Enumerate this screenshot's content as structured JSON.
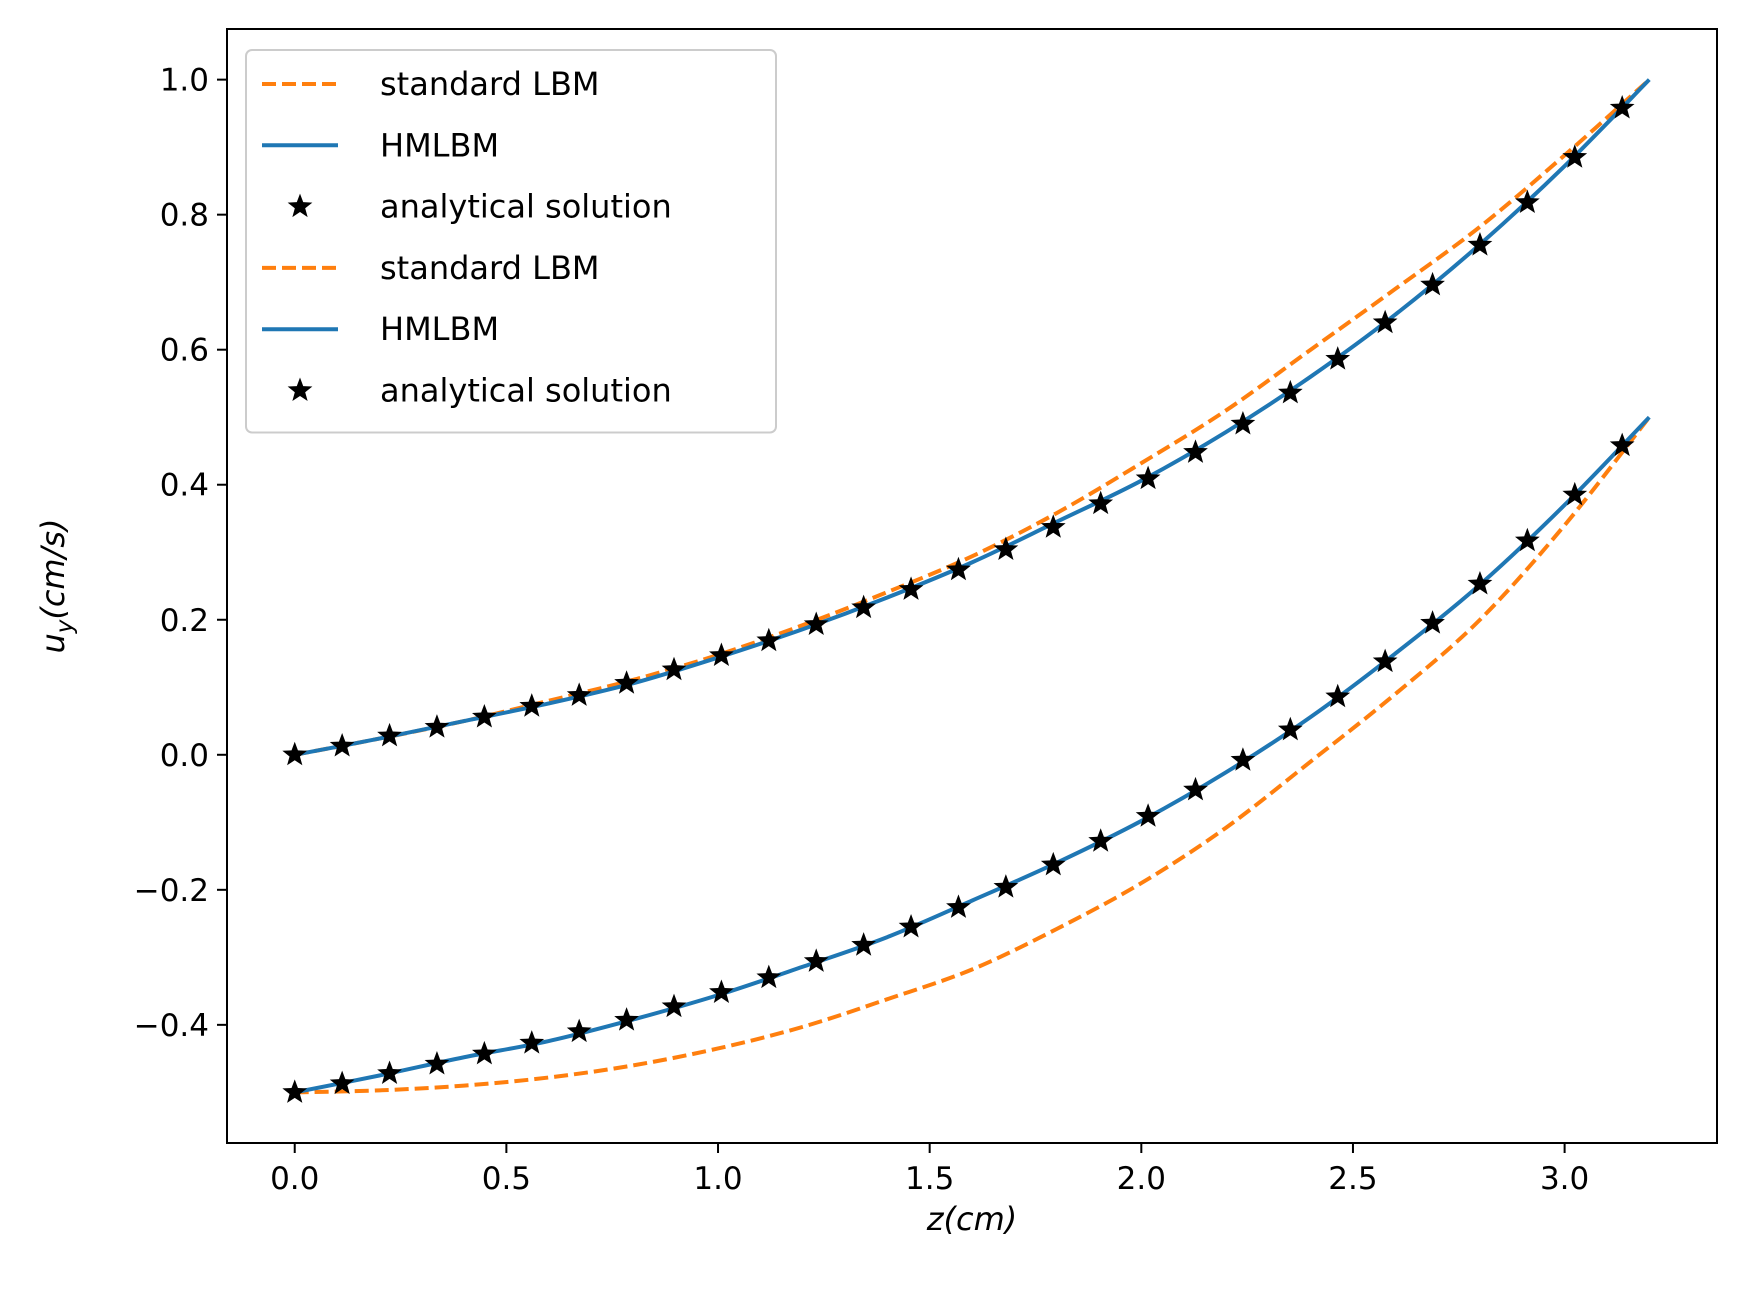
{
  "chart_data": {
    "type": "line",
    "xlabel": "z(cm)",
    "ylabel": "u_y(cm/s)",
    "xlim": [
      -0.16,
      3.36
    ],
    "ylim": [
      -0.575,
      1.075
    ],
    "x_ticks": [
      "0.0",
      "0.5",
      "1.0",
      "1.5",
      "2.0",
      "2.5",
      "3.0"
    ],
    "y_ticks": [
      "−0.4",
      "−0.2",
      "0.0",
      "0.2",
      "0.4",
      "0.6",
      "0.8",
      "1.0"
    ],
    "legend_position": "upper-left",
    "legend": [
      {
        "label": "standard LBM",
        "style": "dashed",
        "color": "#ff7f0e"
      },
      {
        "label": "HMLBM",
        "style": "solid",
        "color": "#1f77b4"
      },
      {
        "label": "analytical solution",
        "style": "star",
        "color": "#000000"
      },
      {
        "label": "standard LBM",
        "style": "dashed",
        "color": "#ff7f0e"
      },
      {
        "label": "HMLBM",
        "style": "solid",
        "color": "#1f77b4"
      },
      {
        "label": "analytical solution",
        "style": "star",
        "color": "#000000"
      }
    ],
    "series": [
      {
        "legend_label": "standard LBM",
        "style": "dashed",
        "color": "#ff7f0e",
        "x": [
          0,
          0.2,
          0.4,
          0.6,
          0.8,
          1.0,
          1.2,
          1.4,
          1.6,
          1.8,
          2.0,
          2.2,
          2.4,
          2.6,
          2.8,
          3.0,
          3.2
        ],
        "y": [
          0,
          0.024,
          0.05,
          0.08,
          0.111,
          0.148,
          0.192,
          0.241,
          0.294,
          0.358,
          0.432,
          0.51,
          0.6,
          0.69,
          0.782,
          0.888,
          1.0
        ]
      },
      {
        "legend_label": "HMLBM",
        "style": "solid",
        "color": "#1f77b4",
        "x": [
          0,
          0.2,
          0.4,
          0.6,
          0.8,
          1.0,
          1.2,
          1.4,
          1.6,
          1.8,
          2.0,
          2.2,
          2.4,
          2.6,
          2.8,
          3.0,
          3.2
        ],
        "y": [
          0,
          0.024,
          0.05,
          0.076,
          0.106,
          0.144,
          0.186,
          0.233,
          0.285,
          0.345,
          0.406,
          0.478,
          0.56,
          0.652,
          0.756,
          0.872,
          1.0
        ]
      },
      {
        "legend_label": "analytical solution",
        "style": "star",
        "color": "#000000",
        "x": [
          0,
          0.112,
          0.224,
          0.336,
          0.448,
          0.56,
          0.672,
          0.784,
          0.896,
          1.008,
          1.12,
          1.232,
          1.344,
          1.456,
          1.568,
          1.68,
          1.792,
          1.904,
          2.016,
          2.128,
          2.24,
          2.352,
          2.464,
          2.576,
          2.688,
          2.8,
          2.912,
          3.024,
          3.136
        ],
        "y": [
          0,
          0.013,
          0.028,
          0.041,
          0.056,
          0.072,
          0.088,
          0.106,
          0.126,
          0.147,
          0.169,
          0.193,
          0.218,
          0.245,
          0.274,
          0.304,
          0.337,
          0.372,
          0.409,
          0.448,
          0.49,
          0.536,
          0.586,
          0.64,
          0.696,
          0.755,
          0.818,
          0.885,
          0.958
        ]
      },
      {
        "legend_label": "standard LBM",
        "style": "dashed",
        "color": "#ff7f0e",
        "x": [
          0,
          0.2,
          0.4,
          0.6,
          0.8,
          1.0,
          1.2,
          1.4,
          1.6,
          1.8,
          2.0,
          2.2,
          2.4,
          2.6,
          2.8,
          3.0,
          3.2
        ],
        "y": [
          -0.5,
          -0.497,
          -0.49,
          -0.478,
          -0.46,
          -0.435,
          -0.403,
          -0.362,
          -0.318,
          -0.258,
          -0.19,
          -0.108,
          -0.01,
          0.09,
          0.2,
          0.34,
          0.5
        ]
      },
      {
        "legend_label": "HMLBM",
        "style": "solid",
        "color": "#1f77b4",
        "x": [
          0,
          0.2,
          0.4,
          0.6,
          0.8,
          1.0,
          1.2,
          1.4,
          1.6,
          1.8,
          2.0,
          2.2,
          2.4,
          2.6,
          2.8,
          3.0,
          3.2
        ],
        "y": [
          -0.5,
          -0.475,
          -0.448,
          -0.424,
          -0.392,
          -0.356,
          -0.314,
          -0.27,
          -0.216,
          -0.16,
          -0.098,
          -0.026,
          0.056,
          0.15,
          0.252,
          0.37,
          0.5
        ]
      },
      {
        "legend_label": "analytical solution",
        "style": "star",
        "color": "#000000",
        "x": [
          0,
          0.112,
          0.224,
          0.336,
          0.448,
          0.56,
          0.672,
          0.784,
          0.896,
          1.008,
          1.12,
          1.232,
          1.344,
          1.456,
          1.568,
          1.68,
          1.792,
          1.904,
          2.016,
          2.128,
          2.24,
          2.352,
          2.464,
          2.576,
          2.688,
          2.8,
          2.912,
          3.024,
          3.136
        ],
        "y": [
          -0.5,
          -0.487,
          -0.472,
          -0.458,
          -0.443,
          -0.427,
          -0.41,
          -0.393,
          -0.373,
          -0.352,
          -0.33,
          -0.306,
          -0.282,
          -0.255,
          -0.226,
          -0.196,
          -0.163,
          -0.128,
          -0.091,
          -0.052,
          -0.008,
          0.037,
          0.086,
          0.138,
          0.195,
          0.253,
          0.317,
          0.385,
          0.458
        ]
      }
    ]
  }
}
